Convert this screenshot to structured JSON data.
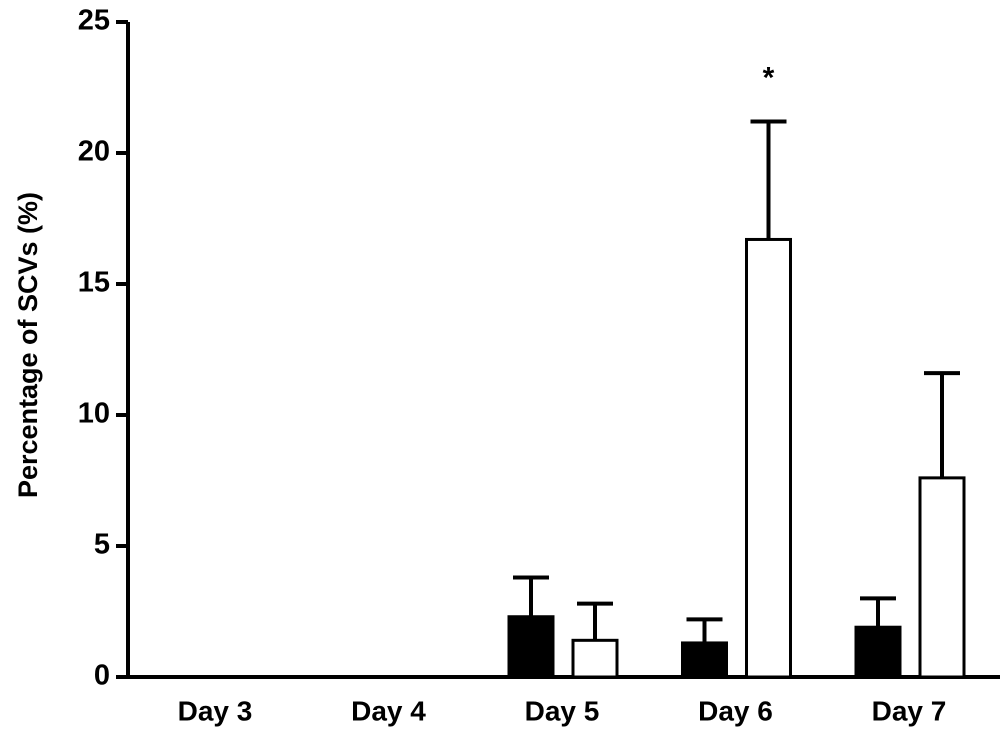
{
  "chart_data": {
    "type": "bar",
    "y_label": "Percentage of SCVs (%)",
    "annotation": "*",
    "categories": [
      "Day 3",
      "Day 4",
      "Day 5",
      "Day 6",
      "Day 7"
    ],
    "series": [
      {
        "color": "#000000",
        "values": [
          null,
          null,
          2.3,
          1.3,
          1.9
        ],
        "errors": [
          null,
          null,
          1.5,
          0.9,
          1.1
        ]
      },
      {
        "color": "#ffffff",
        "values": [
          null,
          null,
          1.4,
          16.7,
          7.6
        ],
        "errors": [
          null,
          null,
          1.4,
          4.5,
          4.0
        ]
      }
    ],
    "ylim": [
      0,
      25
    ],
    "yticks": [
      0,
      5,
      10,
      15,
      20,
      25
    ]
  }
}
